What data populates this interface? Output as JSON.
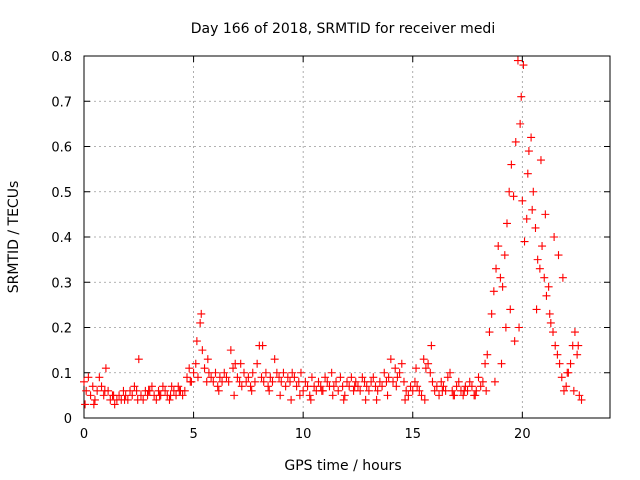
{
  "chart_data": {
    "type": "scatter",
    "title": "Day 166 of 2018, SRMTID for receiver medi",
    "xlabel": "GPS time / hours",
    "ylabel": "SRMTID / TECUs",
    "xlim": [
      0,
      24
    ],
    "ylim": [
      0,
      0.8
    ],
    "xticks": [
      0,
      5,
      10,
      15,
      20
    ],
    "yticks": [
      0,
      0.1,
      0.2,
      0.3,
      0.4,
      0.5,
      0.6,
      0.7,
      0.8
    ],
    "xtick_labels": [
      "0",
      "5",
      "10",
      "15",
      "20"
    ],
    "ytick_labels": [
      "0",
      "0.1",
      "0.2",
      "0.3",
      "0.4",
      "0.5",
      "0.6",
      "0.7",
      "0.8"
    ],
    "grid": true,
    "marker": "+",
    "series": [
      {
        "name": "SRMTID",
        "color": "#ff0000",
        "x": [
          0.0,
          0.1,
          0.2,
          0.3,
          0.4,
          0.5,
          0.6,
          0.7,
          0.8,
          0.9,
          1.0,
          1.1,
          1.2,
          1.3,
          1.4,
          1.5,
          1.6,
          1.7,
          1.8,
          1.9,
          2.0,
          2.1,
          2.2,
          2.3,
          2.4,
          2.5,
          2.6,
          2.7,
          2.8,
          2.9,
          3.0,
          3.1,
          3.2,
          3.3,
          3.4,
          3.5,
          3.6,
          3.7,
          3.8,
          3.9,
          4.0,
          4.1,
          4.2,
          4.3,
          4.4,
          4.5,
          4.6,
          4.7,
          4.8,
          4.9,
          5.0,
          5.1,
          5.2,
          5.3,
          5.4,
          5.5,
          5.6,
          5.7,
          5.8,
          5.9,
          6.0,
          6.1,
          6.2,
          6.3,
          6.4,
          6.5,
          6.6,
          6.7,
          6.8,
          6.9,
          7.0,
          7.1,
          7.2,
          7.3,
          7.4,
          7.5,
          7.6,
          7.7,
          7.8,
          7.9,
          8.0,
          8.1,
          8.2,
          8.3,
          8.4,
          8.5,
          8.6,
          8.7,
          8.8,
          8.9,
          9.0,
          9.1,
          9.2,
          9.3,
          9.4,
          9.5,
          9.6,
          9.7,
          9.8,
          9.9,
          10.0,
          10.1,
          10.2,
          10.3,
          10.4,
          10.5,
          10.6,
          10.7,
          10.8,
          10.9,
          11.0,
          11.1,
          11.2,
          11.3,
          11.4,
          11.5,
          11.6,
          11.7,
          11.8,
          11.9,
          12.0,
          12.1,
          12.2,
          12.3,
          12.4,
          12.5,
          12.6,
          12.7,
          12.8,
          12.9,
          13.0,
          13.1,
          13.2,
          13.3,
          13.4,
          13.5,
          13.6,
          13.7,
          13.8,
          13.9,
          14.0,
          14.1,
          14.2,
          14.3,
          14.4,
          14.5,
          14.6,
          14.7,
          14.8,
          14.9,
          15.0,
          15.1,
          15.2,
          15.3,
          15.4,
          15.5,
          15.6,
          15.7,
          15.8,
          15.9,
          16.0,
          16.1,
          16.2,
          16.3,
          16.4,
          16.5,
          16.6,
          16.7,
          16.8,
          16.9,
          17.0,
          17.1,
          17.2,
          17.3,
          17.4,
          17.5,
          17.6,
          17.7,
          17.8,
          17.9,
          18.0,
          18.1,
          18.2,
          18.3,
          18.4,
          18.5,
          18.6,
          18.7,
          18.8,
          18.9,
          19.0,
          19.1,
          19.2,
          19.3,
          19.4,
          19.5,
          19.6,
          19.7,
          19.8,
          19.9,
          20.0,
          20.1,
          20.2,
          20.3,
          20.4,
          20.5,
          20.6,
          20.7,
          20.8,
          20.9,
          21.0,
          21.1,
          21.2,
          21.3,
          21.4,
          21.5,
          21.6,
          21.7,
          21.8,
          21.9,
          22.0,
          22.1,
          22.2,
          22.3,
          22.4,
          22.5,
          22.6,
          22.7,
          0.05,
          0.45,
          0.95,
          1.35,
          1.85,
          2.45,
          2.95,
          3.45,
          3.95,
          4.35,
          4.85,
          5.15,
          5.35,
          5.65,
          6.15,
          6.85,
          7.15,
          7.65,
          8.15,
          8.45,
          8.95,
          9.45,
          9.85,
          10.35,
          10.85,
          11.35,
          11.85,
          12.35,
          12.85,
          13.35,
          13.85,
          14.25,
          14.65,
          15.15,
          15.55,
          15.85,
          16.35,
          16.85,
          17.35,
          17.85,
          18.35,
          18.75,
          19.05,
          19.25,
          19.45,
          19.65,
          19.85,
          19.95,
          20.05,
          20.25,
          20.45,
          20.65,
          20.85,
          21.05,
          21.25,
          21.45,
          21.65,
          21.85,
          22.05,
          22.35,
          22.55
        ],
        "y": [
          0.08,
          0.06,
          0.09,
          0.05,
          0.07,
          0.04,
          0.06,
          0.09,
          0.07,
          0.05,
          0.11,
          0.06,
          0.04,
          0.05,
          0.03,
          0.04,
          0.05,
          0.04,
          0.06,
          0.05,
          0.04,
          0.06,
          0.05,
          0.07,
          0.06,
          0.13,
          0.05,
          0.04,
          0.06,
          0.05,
          0.06,
          0.07,
          0.05,
          0.04,
          0.06,
          0.05,
          0.07,
          0.06,
          0.05,
          0.04,
          0.07,
          0.06,
          0.05,
          0.07,
          0.06,
          0.05,
          0.06,
          0.09,
          0.11,
          0.08,
          0.1,
          0.12,
          0.09,
          0.21,
          0.15,
          0.11,
          0.08,
          0.1,
          0.09,
          0.08,
          0.1,
          0.07,
          0.09,
          0.08,
          0.1,
          0.09,
          0.08,
          0.15,
          0.11,
          0.12,
          0.09,
          0.08,
          0.07,
          0.1,
          0.08,
          0.09,
          0.07,
          0.1,
          0.08,
          0.12,
          0.16,
          0.09,
          0.08,
          0.1,
          0.07,
          0.09,
          0.08,
          0.13,
          0.1,
          0.09,
          0.08,
          0.1,
          0.07,
          0.09,
          0.08,
          0.1,
          0.09,
          0.07,
          0.08,
          0.1,
          0.06,
          0.08,
          0.07,
          0.05,
          0.09,
          0.07,
          0.06,
          0.08,
          0.07,
          0.06,
          0.09,
          0.08,
          0.07,
          0.1,
          0.07,
          0.08,
          0.06,
          0.09,
          0.07,
          0.05,
          0.08,
          0.07,
          0.09,
          0.06,
          0.08,
          0.07,
          0.06,
          0.09,
          0.08,
          0.07,
          0.06,
          0.08,
          0.09,
          0.07,
          0.06,
          0.08,
          0.07,
          0.1,
          0.08,
          0.09,
          0.13,
          0.08,
          0.11,
          0.09,
          0.1,
          0.12,
          0.08,
          0.06,
          0.05,
          0.07,
          0.06,
          0.08,
          0.07,
          0.06,
          0.05,
          0.13,
          0.11,
          0.12,
          0.1,
          0.08,
          0.06,
          0.07,
          0.05,
          0.08,
          0.07,
          0.06,
          0.09,
          0.1,
          0.06,
          0.05,
          0.07,
          0.08,
          0.06,
          0.05,
          0.07,
          0.06,
          0.08,
          0.07,
          0.05,
          0.06,
          0.09,
          0.07,
          0.08,
          0.12,
          0.14,
          0.19,
          0.23,
          0.28,
          0.33,
          0.38,
          0.31,
          0.29,
          0.36,
          0.43,
          0.5,
          0.56,
          0.49,
          0.61,
          0.79,
          0.65,
          0.48,
          0.39,
          0.44,
          0.59,
          0.62,
          0.5,
          0.42,
          0.35,
          0.33,
          0.38,
          0.31,
          0.27,
          0.29,
          0.21,
          0.19,
          0.16,
          0.14,
          0.12,
          0.09,
          0.06,
          0.07,
          0.1,
          0.12,
          0.16,
          0.19,
          0.14,
          0.05,
          0.04,
          0.03,
          0.03,
          0.06,
          0.05,
          0.04,
          0.04,
          0.06,
          0.05,
          0.05,
          0.06,
          0.08,
          0.17,
          0.23,
          0.13,
          0.06,
          0.05,
          0.12,
          0.06,
          0.16,
          0.06,
          0.05,
          0.04,
          0.05,
          0.04,
          0.06,
          0.05,
          0.04,
          0.07,
          0.04,
          0.04,
          0.05,
          0.07,
          0.04,
          0.11,
          0.04,
          0.16,
          0.06,
          0.05,
          0.06,
          0.05,
          0.06,
          0.08,
          0.12,
          0.2,
          0.24,
          0.17,
          0.2,
          0.71,
          0.78,
          0.54,
          0.46,
          0.24,
          0.57,
          0.45,
          0.23,
          0.4,
          0.36,
          0.31,
          0.1,
          0.06,
          0.16
        ]
      }
    ]
  }
}
